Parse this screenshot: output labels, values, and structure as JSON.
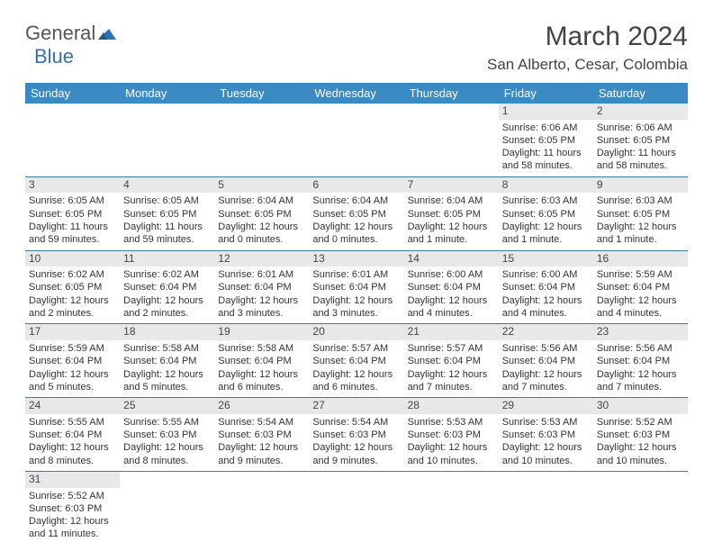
{
  "logo": {
    "general": "General",
    "blue": "Blue"
  },
  "title": "March 2024",
  "location": "San Alberto, Cesar, Colombia",
  "colors": {
    "header_bg": "#3b8ac4",
    "header_text": "#ffffff",
    "daynum_bg": "#e8e8e8",
    "row_border": "#3b78b0",
    "logo_blue": "#2e74b5"
  },
  "weekdays": [
    "Sunday",
    "Monday",
    "Tuesday",
    "Wednesday",
    "Thursday",
    "Friday",
    "Saturday"
  ],
  "weeks": [
    [
      null,
      null,
      null,
      null,
      null,
      {
        "n": "1",
        "sr": "Sunrise: 6:06 AM",
        "ss": "Sunset: 6:05 PM",
        "dl": "Daylight: 11 hours and 58 minutes."
      },
      {
        "n": "2",
        "sr": "Sunrise: 6:06 AM",
        "ss": "Sunset: 6:05 PM",
        "dl": "Daylight: 11 hours and 58 minutes."
      }
    ],
    [
      {
        "n": "3",
        "sr": "Sunrise: 6:05 AM",
        "ss": "Sunset: 6:05 PM",
        "dl": "Daylight: 11 hours and 59 minutes."
      },
      {
        "n": "4",
        "sr": "Sunrise: 6:05 AM",
        "ss": "Sunset: 6:05 PM",
        "dl": "Daylight: 11 hours and 59 minutes."
      },
      {
        "n": "5",
        "sr": "Sunrise: 6:04 AM",
        "ss": "Sunset: 6:05 PM",
        "dl": "Daylight: 12 hours and 0 minutes."
      },
      {
        "n": "6",
        "sr": "Sunrise: 6:04 AM",
        "ss": "Sunset: 6:05 PM",
        "dl": "Daylight: 12 hours and 0 minutes."
      },
      {
        "n": "7",
        "sr": "Sunrise: 6:04 AM",
        "ss": "Sunset: 6:05 PM",
        "dl": "Daylight: 12 hours and 1 minute."
      },
      {
        "n": "8",
        "sr": "Sunrise: 6:03 AM",
        "ss": "Sunset: 6:05 PM",
        "dl": "Daylight: 12 hours and 1 minute."
      },
      {
        "n": "9",
        "sr": "Sunrise: 6:03 AM",
        "ss": "Sunset: 6:05 PM",
        "dl": "Daylight: 12 hours and 1 minute."
      }
    ],
    [
      {
        "n": "10",
        "sr": "Sunrise: 6:02 AM",
        "ss": "Sunset: 6:05 PM",
        "dl": "Daylight: 12 hours and 2 minutes."
      },
      {
        "n": "11",
        "sr": "Sunrise: 6:02 AM",
        "ss": "Sunset: 6:04 PM",
        "dl": "Daylight: 12 hours and 2 minutes."
      },
      {
        "n": "12",
        "sr": "Sunrise: 6:01 AM",
        "ss": "Sunset: 6:04 PM",
        "dl": "Daylight: 12 hours and 3 minutes."
      },
      {
        "n": "13",
        "sr": "Sunrise: 6:01 AM",
        "ss": "Sunset: 6:04 PM",
        "dl": "Daylight: 12 hours and 3 minutes."
      },
      {
        "n": "14",
        "sr": "Sunrise: 6:00 AM",
        "ss": "Sunset: 6:04 PM",
        "dl": "Daylight: 12 hours and 4 minutes."
      },
      {
        "n": "15",
        "sr": "Sunrise: 6:00 AM",
        "ss": "Sunset: 6:04 PM",
        "dl": "Daylight: 12 hours and 4 minutes."
      },
      {
        "n": "16",
        "sr": "Sunrise: 5:59 AM",
        "ss": "Sunset: 6:04 PM",
        "dl": "Daylight: 12 hours and 4 minutes."
      }
    ],
    [
      {
        "n": "17",
        "sr": "Sunrise: 5:59 AM",
        "ss": "Sunset: 6:04 PM",
        "dl": "Daylight: 12 hours and 5 minutes."
      },
      {
        "n": "18",
        "sr": "Sunrise: 5:58 AM",
        "ss": "Sunset: 6:04 PM",
        "dl": "Daylight: 12 hours and 5 minutes."
      },
      {
        "n": "19",
        "sr": "Sunrise: 5:58 AM",
        "ss": "Sunset: 6:04 PM",
        "dl": "Daylight: 12 hours and 6 minutes."
      },
      {
        "n": "20",
        "sr": "Sunrise: 5:57 AM",
        "ss": "Sunset: 6:04 PM",
        "dl": "Daylight: 12 hours and 6 minutes."
      },
      {
        "n": "21",
        "sr": "Sunrise: 5:57 AM",
        "ss": "Sunset: 6:04 PM",
        "dl": "Daylight: 12 hours and 7 minutes."
      },
      {
        "n": "22",
        "sr": "Sunrise: 5:56 AM",
        "ss": "Sunset: 6:04 PM",
        "dl": "Daylight: 12 hours and 7 minutes."
      },
      {
        "n": "23",
        "sr": "Sunrise: 5:56 AM",
        "ss": "Sunset: 6:04 PM",
        "dl": "Daylight: 12 hours and 7 minutes."
      }
    ],
    [
      {
        "n": "24",
        "sr": "Sunrise: 5:55 AM",
        "ss": "Sunset: 6:04 PM",
        "dl": "Daylight: 12 hours and 8 minutes."
      },
      {
        "n": "25",
        "sr": "Sunrise: 5:55 AM",
        "ss": "Sunset: 6:03 PM",
        "dl": "Daylight: 12 hours and 8 minutes."
      },
      {
        "n": "26",
        "sr": "Sunrise: 5:54 AM",
        "ss": "Sunset: 6:03 PM",
        "dl": "Daylight: 12 hours and 9 minutes."
      },
      {
        "n": "27",
        "sr": "Sunrise: 5:54 AM",
        "ss": "Sunset: 6:03 PM",
        "dl": "Daylight: 12 hours and 9 minutes."
      },
      {
        "n": "28",
        "sr": "Sunrise: 5:53 AM",
        "ss": "Sunset: 6:03 PM",
        "dl": "Daylight: 12 hours and 10 minutes."
      },
      {
        "n": "29",
        "sr": "Sunrise: 5:53 AM",
        "ss": "Sunset: 6:03 PM",
        "dl": "Daylight: 12 hours and 10 minutes."
      },
      {
        "n": "30",
        "sr": "Sunrise: 5:52 AM",
        "ss": "Sunset: 6:03 PM",
        "dl": "Daylight: 12 hours and 10 minutes."
      }
    ],
    [
      {
        "n": "31",
        "sr": "Sunrise: 5:52 AM",
        "ss": "Sunset: 6:03 PM",
        "dl": "Daylight: 12 hours and 11 minutes."
      },
      null,
      null,
      null,
      null,
      null,
      null
    ]
  ]
}
